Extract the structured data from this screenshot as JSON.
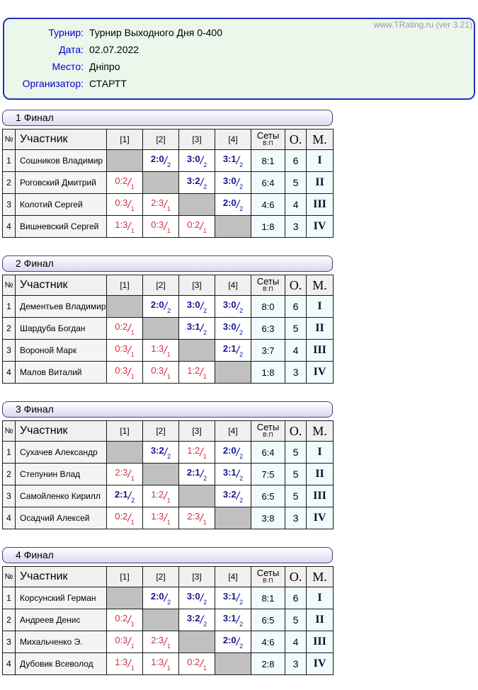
{
  "site": {
    "watermark": "www.TRating.ru (ver 3.21)"
  },
  "colors": {
    "watermark_gray": "#9a9a9a",
    "info_bg": "#ecf7ec",
    "info_border": "#2233bb",
    "label_blue": "#0000cc",
    "group_border": "#404080",
    "group_grad_top": "#ffffff",
    "group_grad_bottom": "#d9d9ef",
    "header_cell_bg": "#f0f0f0",
    "name_cell_bg": "#f4f4f4",
    "self_cell_bg": "#c0c0c0",
    "stat_cell_bg": "#f0fbfb",
    "grid": "#1a1a1a",
    "win_blue": "#16168f",
    "loss_red": "#cc3344"
  },
  "tournament": {
    "fields": [
      {
        "label": "Турнир:",
        "value": "Турнир Выходного Дня 0-400"
      },
      {
        "label": "Дата:",
        "value": "02.07.2022"
      },
      {
        "label": "Место:",
        "value": "Дніпро"
      },
      {
        "label": "Организатор:",
        "value": "СТАРТТ"
      }
    ]
  },
  "table": {
    "headers": {
      "number": "№",
      "participant": "Участник",
      "opponents": [
        "[1]",
        "[2]",
        "[3]",
        "[4]"
      ],
      "sets": "Сеты",
      "sets_sub": "В:П",
      "points": "О.",
      "place": "М."
    }
  },
  "groups": [
    {
      "title": "1 Финал",
      "rows": [
        {
          "num": "1",
          "name": "Сошников Владимир",
          "matches": [
            {
              "self": true
            },
            {
              "score": "2:0",
              "pts": "2",
              "win": true
            },
            {
              "score": "3:0",
              "pts": "2",
              "win": true
            },
            {
              "score": "3:1",
              "pts": "2",
              "win": true
            }
          ],
          "sets": "8:1",
          "points": "6",
          "place": "I"
        },
        {
          "num": "2",
          "name": "Роговский Дмитрий",
          "matches": [
            {
              "score": "0:2",
              "pts": "1",
              "win": false
            },
            {
              "self": true
            },
            {
              "score": "3:2",
              "pts": "2",
              "win": true
            },
            {
              "score": "3:0",
              "pts": "2",
              "win": true
            }
          ],
          "sets": "6:4",
          "points": "5",
          "place": "II"
        },
        {
          "num": "3",
          "name": "Колотий Сергей",
          "matches": [
            {
              "score": "0:3",
              "pts": "1",
              "win": false
            },
            {
              "score": "2:3",
              "pts": "1",
              "win": false
            },
            {
              "self": true
            },
            {
              "score": "2:0",
              "pts": "2",
              "win": true
            }
          ],
          "sets": "4:6",
          "points": "4",
          "place": "III"
        },
        {
          "num": "4",
          "name": "Вишневский Сергей",
          "matches": [
            {
              "score": "1:3",
              "pts": "1",
              "win": false
            },
            {
              "score": "0:3",
              "pts": "1",
              "win": false
            },
            {
              "score": "0:2",
              "pts": "1",
              "win": false
            },
            {
              "self": true
            }
          ],
          "sets": "1:8",
          "points": "3",
          "place": "IV"
        }
      ]
    },
    {
      "title": "2 Финал",
      "rows": [
        {
          "num": "1",
          "name": "Дементьев Владимир",
          "matches": [
            {
              "self": true
            },
            {
              "score": "2:0",
              "pts": "2",
              "win": true
            },
            {
              "score": "3:0",
              "pts": "2",
              "win": true
            },
            {
              "score": "3:0",
              "pts": "2",
              "win": true
            }
          ],
          "sets": "8:0",
          "points": "6",
          "place": "I"
        },
        {
          "num": "2",
          "name": "Шардуба Богдан",
          "matches": [
            {
              "score": "0:2",
              "pts": "1",
              "win": false
            },
            {
              "self": true
            },
            {
              "score": "3:1",
              "pts": "2",
              "win": true
            },
            {
              "score": "3:0",
              "pts": "2",
              "win": true
            }
          ],
          "sets": "6:3",
          "points": "5",
          "place": "II"
        },
        {
          "num": "3",
          "name": "Вороной Марк",
          "matches": [
            {
              "score": "0:3",
              "pts": "1",
              "win": false
            },
            {
              "score": "1:3",
              "pts": "1",
              "win": false
            },
            {
              "self": true
            },
            {
              "score": "2:1",
              "pts": "2",
              "win": true
            }
          ],
          "sets": "3:7",
          "points": "4",
          "place": "III"
        },
        {
          "num": "4",
          "name": "Малов Виталий",
          "matches": [
            {
              "score": "0:3",
              "pts": "1",
              "win": false
            },
            {
              "score": "0:3",
              "pts": "1",
              "win": false
            },
            {
              "score": "1:2",
              "pts": "1",
              "win": false
            },
            {
              "self": true
            }
          ],
          "sets": "1:8",
          "points": "3",
          "place": "IV"
        }
      ]
    },
    {
      "title": "3 Финал",
      "rows": [
        {
          "num": "1",
          "name": "Сухачев Александр",
          "matches": [
            {
              "self": true
            },
            {
              "score": "3:2",
              "pts": "2",
              "win": true
            },
            {
              "score": "1:2",
              "pts": "1",
              "win": false
            },
            {
              "score": "2:0",
              "pts": "2",
              "win": true
            }
          ],
          "sets": "6:4",
          "points": "5",
          "place": "I"
        },
        {
          "num": "2",
          "name": "Степунин Влад",
          "matches": [
            {
              "score": "2:3",
              "pts": "1",
              "win": false
            },
            {
              "self": true
            },
            {
              "score": "2:1",
              "pts": "2",
              "win": true
            },
            {
              "score": "3:1",
              "pts": "2",
              "win": true
            }
          ],
          "sets": "7:5",
          "points": "5",
          "place": "II"
        },
        {
          "num": "3",
          "name": "Самойленко Кирилл",
          "matches": [
            {
              "score": "2:1",
              "pts": "2",
              "win": true
            },
            {
              "score": "1:2",
              "pts": "1",
              "win": false
            },
            {
              "self": true
            },
            {
              "score": "3:2",
              "pts": "2",
              "win": true
            }
          ],
          "sets": "6:5",
          "points": "5",
          "place": "III"
        },
        {
          "num": "4",
          "name": "Осадчий Алексей",
          "matches": [
            {
              "score": "0:2",
              "pts": "1",
              "win": false
            },
            {
              "score": "1:3",
              "pts": "1",
              "win": false
            },
            {
              "score": "2:3",
              "pts": "1",
              "win": false
            },
            {
              "self": true
            }
          ],
          "sets": "3:8",
          "points": "3",
          "place": "IV"
        }
      ]
    },
    {
      "title": "4 Финал",
      "rows": [
        {
          "num": "1",
          "name": "Корсунский Герман",
          "matches": [
            {
              "self": true
            },
            {
              "score": "2:0",
              "pts": "2",
              "win": true
            },
            {
              "score": "3:0",
              "pts": "2",
              "win": true
            },
            {
              "score": "3:1",
              "pts": "2",
              "win": true
            }
          ],
          "sets": "8:1",
          "points": "6",
          "place": "I"
        },
        {
          "num": "2",
          "name": "Андреев Денис",
          "matches": [
            {
              "score": "0:2",
              "pts": "1",
              "win": false
            },
            {
              "self": true
            },
            {
              "score": "3:2",
              "pts": "2",
              "win": true
            },
            {
              "score": "3:1",
              "pts": "2",
              "win": true
            }
          ],
          "sets": "6:5",
          "points": "5",
          "place": "II"
        },
        {
          "num": "3",
          "name": "Михальченко Э.",
          "matches": [
            {
              "score": "0:3",
              "pts": "1",
              "win": false
            },
            {
              "score": "2:3",
              "pts": "1",
              "win": false
            },
            {
              "self": true
            },
            {
              "score": "2:0",
              "pts": "2",
              "win": true
            }
          ],
          "sets": "4:6",
          "points": "4",
          "place": "III"
        },
        {
          "num": "4",
          "name": "Дубовик Всеволод",
          "matches": [
            {
              "score": "1:3",
              "pts": "1",
              "win": false
            },
            {
              "score": "1:3",
              "pts": "1",
              "win": false
            },
            {
              "score": "0:2",
              "pts": "1",
              "win": false
            },
            {
              "self": true
            }
          ],
          "sets": "2:8",
          "points": "3",
          "place": "IV"
        }
      ]
    }
  ]
}
